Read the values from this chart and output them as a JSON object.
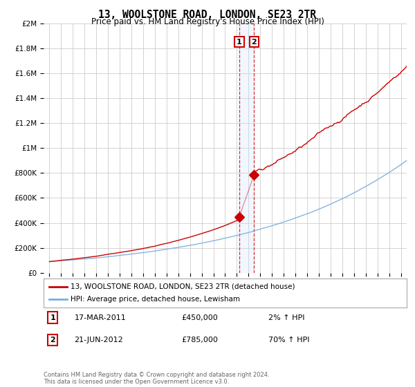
{
  "title": "13, WOOLSTONE ROAD, LONDON, SE23 2TR",
  "subtitle": "Price paid vs. HM Land Registry's House Price Index (HPI)",
  "legend_line1": "13, WOOLSTONE ROAD, LONDON, SE23 2TR (detached house)",
  "legend_line2": "HPI: Average price, detached house, Lewisham",
  "footnote": "Contains HM Land Registry data © Crown copyright and database right 2024.\nThis data is licensed under the Open Government Licence v3.0.",
  "annotation1_date": "17-MAR-2011",
  "annotation1_price": "£450,000",
  "annotation1_hpi": "2% ↑ HPI",
  "annotation2_date": "21-JUN-2012",
  "annotation2_price": "£785,000",
  "annotation2_hpi": "70% ↑ HPI",
  "marker1_x": 2011.21,
  "marker1_y": 450000,
  "marker2_x": 2012.47,
  "marker2_y": 785000,
  "vline1_x": 2011.21,
  "vline2_x": 2012.47,
  "ylim": [
    0,
    2000000
  ],
  "xlim": [
    1994.5,
    2025.5
  ],
  "red_color": "#cc0000",
  "blue_color": "#7aacdc",
  "shade_color": "#cce0ff",
  "grid_color": "#cccccc",
  "background_color": "#ffffff"
}
